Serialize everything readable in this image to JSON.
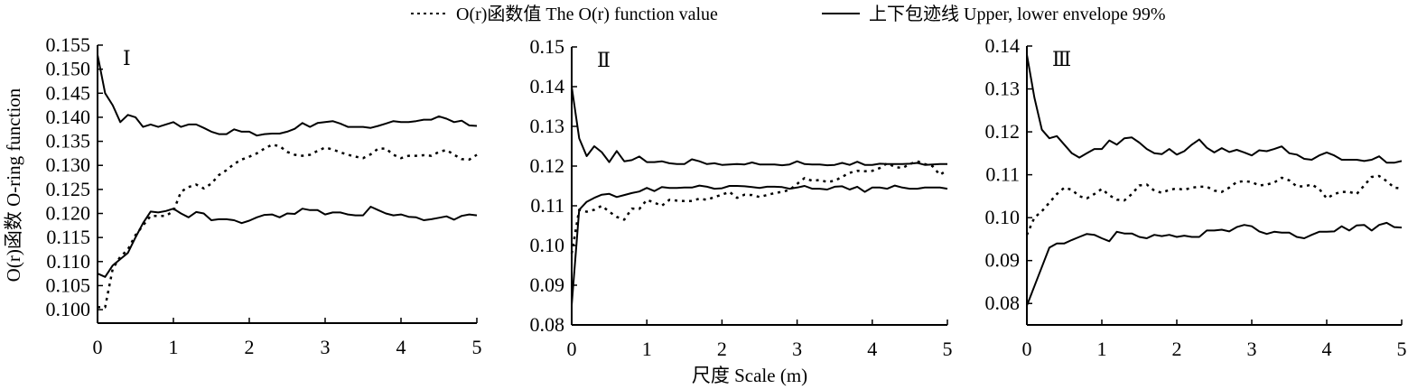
{
  "legend": {
    "observed": "O(r)函数值 The O(r) function value",
    "envelope": "上下包迹线 Upper, lower envelope 99%"
  },
  "xlabel": "尺度 Scale (m)",
  "ylabel": "O(r)函数 O-ring function",
  "chart_data": [
    {
      "type": "line",
      "title": "Ⅰ",
      "xlim": [
        0,
        5
      ],
      "ylim": [
        0.0972,
        0.155
      ],
      "xticks": [
        "0",
        "1",
        "2",
        "3",
        "4",
        "5"
      ],
      "yticks": [
        "0.100",
        "0.105",
        "0.110",
        "0.115",
        "0.120",
        "0.125",
        "0.130",
        "0.135",
        "0.140",
        "0.145",
        "0.150",
        "0.155"
      ],
      "series": [
        {
          "name": "Upper envelope",
          "style": "solid",
          "values": [
            0.153,
            0.145,
            0.1425,
            0.139,
            0.1405,
            0.14,
            0.138,
            0.1385,
            0.138,
            0.1385,
            0.139,
            0.138,
            0.1385,
            0.1385,
            0.1378,
            0.137,
            0.1365,
            0.1365,
            0.1375,
            0.137,
            0.137,
            0.1362,
            0.1365,
            0.1366,
            0.1366,
            0.137,
            0.1376,
            0.1388,
            0.138,
            0.1388,
            0.139,
            0.1392,
            0.1387,
            0.138,
            0.138,
            0.138,
            0.1378,
            0.1382,
            0.1387,
            0.1392,
            0.139,
            0.139,
            0.1392,
            0.1395,
            0.1395,
            0.1402,
            0.1397,
            0.139,
            0.1393,
            0.1383,
            0.1382
          ]
        },
        {
          "name": "Lower envelope",
          "style": "solid",
          "values": [
            0.1075,
            0.1068,
            0.1092,
            0.1105,
            0.1118,
            0.115,
            0.118,
            0.1204,
            0.1202,
            0.1205,
            0.121,
            0.12,
            0.1192,
            0.1203,
            0.12,
            0.1186,
            0.1188,
            0.1188,
            0.1186,
            0.118,
            0.1185,
            0.1192,
            0.1197,
            0.1198,
            0.1192,
            0.12,
            0.1199,
            0.121,
            0.1207,
            0.1207,
            0.1198,
            0.1202,
            0.1202,
            0.1198,
            0.1196,
            0.1196,
            0.1214,
            0.1207,
            0.12,
            0.1196,
            0.1198,
            0.1193,
            0.1192,
            0.1186,
            0.1188,
            0.1191,
            0.1194,
            0.1187,
            0.1195,
            0.1198,
            0.1196
          ]
        },
        {
          "name": "O(r) function value",
          "style": "dotted",
          "values": [
            0.1005,
            0.1005,
            0.1085,
            0.111,
            0.1125,
            0.1155,
            0.1175,
            0.1195,
            0.1195,
            0.1195,
            0.1205,
            0.1245,
            0.1255,
            0.126,
            0.1252,
            0.1262,
            0.128,
            0.129,
            0.1303,
            0.1312,
            0.1318,
            0.1325,
            0.1335,
            0.1343,
            0.134,
            0.1328,
            0.1322,
            0.132,
            0.1322,
            0.133,
            0.1337,
            0.1333,
            0.1327,
            0.1322,
            0.1318,
            0.1315,
            0.1323,
            0.1335,
            0.1335,
            0.1322,
            0.1315,
            0.132,
            0.132,
            0.1321,
            0.132,
            0.1328,
            0.1332,
            0.1322,
            0.1313,
            0.1312,
            0.1322
          ]
        }
      ]
    },
    {
      "type": "line",
      "title": "Ⅱ",
      "xlim": [
        0,
        5
      ],
      "ylim": [
        0.08,
        0.15
      ],
      "xticks": [
        "0",
        "1",
        "2",
        "3",
        "4",
        "5"
      ],
      "yticks": [
        "0.08",
        "0.09",
        "0.10",
        "0.11",
        "0.12",
        "0.13",
        "0.14",
        "0.15"
      ],
      "series": [
        {
          "name": "Upper envelope",
          "style": "solid",
          "values": [
            0.14,
            0.127,
            0.1225,
            0.125,
            0.1235,
            0.121,
            0.1238,
            0.1212,
            0.1215,
            0.1224,
            0.121,
            0.121,
            0.1212,
            0.1207,
            0.1205,
            0.1205,
            0.1217,
            0.1212,
            0.1205,
            0.1207,
            0.1203,
            0.1204,
            0.1205,
            0.1204,
            0.1209,
            0.1204,
            0.1204,
            0.1204,
            0.1202,
            0.1204,
            0.1212,
            0.1205,
            0.1204,
            0.1204,
            0.1202,
            0.1203,
            0.1208,
            0.1203,
            0.1211,
            0.1203,
            0.1203,
            0.1206,
            0.1205,
            0.1205,
            0.1205,
            0.1206,
            0.1208,
            0.1203,
            0.1204,
            0.1205,
            0.1205
          ]
        },
        {
          "name": "Lower envelope",
          "style": "solid",
          "values": [
            0.085,
            0.109,
            0.111,
            0.112,
            0.1128,
            0.113,
            0.1122,
            0.1127,
            0.1132,
            0.1136,
            0.1145,
            0.1137,
            0.1147,
            0.1145,
            0.1145,
            0.1146,
            0.1146,
            0.1151,
            0.1148,
            0.1143,
            0.1144,
            0.115,
            0.115,
            0.1149,
            0.1147,
            0.1145,
            0.1148,
            0.1148,
            0.1147,
            0.1143,
            0.1146,
            0.115,
            0.1143,
            0.1143,
            0.1141,
            0.1148,
            0.1149,
            0.1141,
            0.1148,
            0.1135,
            0.1146,
            0.1146,
            0.1143,
            0.1151,
            0.1146,
            0.1143,
            0.1143,
            0.1146,
            0.1146,
            0.1146,
            0.1143
          ]
        },
        {
          "name": "O(r) function value",
          "style": "dotted",
          "values": [
            0.098,
            0.109,
            0.1085,
            0.109,
            0.11,
            0.1085,
            0.1072,
            0.1065,
            0.1093,
            0.1092,
            0.1115,
            0.1108,
            0.11,
            0.1115,
            0.1113,
            0.1112,
            0.1112,
            0.1118,
            0.1115,
            0.1122,
            0.1128,
            0.1135,
            0.112,
            0.1128,
            0.1127,
            0.1122,
            0.1127,
            0.1132,
            0.1135,
            0.114,
            0.1155,
            0.117,
            0.1163,
            0.1165,
            0.116,
            0.1163,
            0.1173,
            0.1183,
            0.1188,
            0.1187,
            0.1188,
            0.1195,
            0.1207,
            0.1198,
            0.1195,
            0.1205,
            0.1212,
            0.1205,
            0.12,
            0.1178,
            0.119
          ]
        }
      ]
    },
    {
      "type": "line",
      "title": "Ⅲ",
      "xlim": [
        0,
        5
      ],
      "ylim": [
        0.075,
        0.14
      ],
      "xticks": [
        "0",
        "1",
        "2",
        "3",
        "4",
        "5"
      ],
      "yticks": [
        "0.08",
        "0.09",
        "0.10",
        "0.11",
        "0.12",
        "0.13",
        "0.14"
      ],
      "series": [
        {
          "name": "Upper envelope",
          "style": "solid",
          "values": [
            0.138,
            0.128,
            0.1205,
            0.1185,
            0.119,
            0.117,
            0.115,
            0.114,
            0.115,
            0.116,
            0.116,
            0.118,
            0.117,
            0.1185,
            0.1187,
            0.1175,
            0.116,
            0.115,
            0.1148,
            0.116,
            0.1147,
            0.1155,
            0.117,
            0.1182,
            0.1163,
            0.1152,
            0.1162,
            0.1153,
            0.1158,
            0.1152,
            0.1145,
            0.1157,
            0.1155,
            0.116,
            0.1166,
            0.115,
            0.1147,
            0.1137,
            0.1135,
            0.1145,
            0.1152,
            0.1145,
            0.1135,
            0.1135,
            0.1135,
            0.1132,
            0.1135,
            0.1143,
            0.1128,
            0.1128,
            0.1132
          ]
        },
        {
          "name": "Lower envelope",
          "style": "solid",
          "values": [
            0.0795,
            0.084,
            0.0885,
            0.093,
            0.094,
            0.094,
            0.0948,
            0.0955,
            0.0962,
            0.096,
            0.0952,
            0.0945,
            0.0967,
            0.0963,
            0.0963,
            0.0955,
            0.0952,
            0.096,
            0.0957,
            0.096,
            0.0955,
            0.0958,
            0.0955,
            0.0955,
            0.097,
            0.097,
            0.0972,
            0.0968,
            0.0978,
            0.0983,
            0.098,
            0.0968,
            0.0962,
            0.0967,
            0.0965,
            0.0965,
            0.0955,
            0.0952,
            0.096,
            0.0967,
            0.0967,
            0.0968,
            0.098,
            0.097,
            0.0982,
            0.0983,
            0.097,
            0.0983,
            0.0988,
            0.0978,
            0.0977
          ]
        },
        {
          "name": "O(r) function value",
          "style": "dotted",
          "values": [
            0.096,
            0.1,
            0.1015,
            0.1035,
            0.1055,
            0.107,
            0.1065,
            0.105,
            0.1045,
            0.1055,
            0.1067,
            0.1052,
            0.1042,
            0.104,
            0.1055,
            0.1075,
            0.1077,
            0.1063,
            0.1058,
            0.1065,
            0.1068,
            0.1065,
            0.107,
            0.1072,
            0.1072,
            0.1063,
            0.106,
            0.107,
            0.1083,
            0.1085,
            0.1083,
            0.1075,
            0.1077,
            0.1082,
            0.1093,
            0.1087,
            0.1073,
            0.1073,
            0.1077,
            0.1067,
            0.1045,
            0.1055,
            0.106,
            0.106,
            0.1055,
            0.1075,
            0.1095,
            0.1097,
            0.1085,
            0.107,
            0.1068
          ]
        }
      ]
    }
  ]
}
